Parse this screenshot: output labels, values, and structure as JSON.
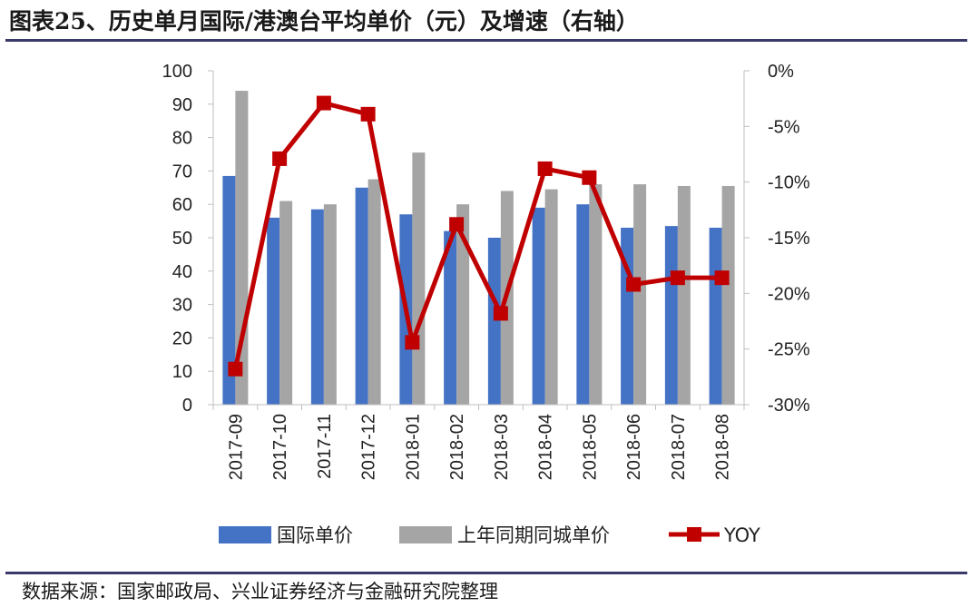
{
  "title": "图表25、历史单月国际/港澳台平均单价（元）及增速（右轴）",
  "source": "数据来源：国家邮政局、兴业证券经济与金融研究院整理",
  "chart_data": {
    "type": "bar",
    "categories": [
      "2017-09",
      "2017-10",
      "2017-11",
      "2017-12",
      "2018-01",
      "2018-02",
      "2018-03",
      "2018-04",
      "2018-05",
      "2018-06",
      "2018-07",
      "2018-08"
    ],
    "series": [
      {
        "name": "国际单价",
        "type": "bar",
        "axis": "left",
        "color": "#4472C4",
        "values": [
          68.5,
          56.0,
          58.5,
          65.0,
          57.0,
          52.0,
          50.0,
          59.0,
          60.0,
          53.0,
          53.5,
          53.0
        ]
      },
      {
        "name": "上年同期同城单价",
        "type": "bar",
        "axis": "left",
        "color": "#A5A5A5",
        "values": [
          94.0,
          61.0,
          60.0,
          67.5,
          75.5,
          60.0,
          64.0,
          64.5,
          66.0,
          66.0,
          65.5,
          65.5
        ]
      },
      {
        "name": "YOY",
        "type": "line",
        "axis": "right",
        "color": "#C00000",
        "values": [
          -26.8,
          -7.9,
          -2.9,
          -3.9,
          -24.4,
          -13.8,
          -21.8,
          -8.8,
          -9.6,
          -19.2,
          -18.6,
          -18.6
        ]
      }
    ],
    "y_left": {
      "min": 0,
      "max": 100,
      "ticks": [
        0,
        10,
        20,
        30,
        40,
        50,
        60,
        70,
        80,
        90,
        100
      ]
    },
    "y_right": {
      "min": -30,
      "max": 0,
      "ticks": [
        "-30%",
        "-25%",
        "-20%",
        "-15%",
        "-10%",
        "-5%",
        "0%"
      ],
      "tick_values": [
        -30,
        -25,
        -20,
        -15,
        -10,
        -5,
        0
      ]
    },
    "legend": "bottom",
    "grid": false
  }
}
